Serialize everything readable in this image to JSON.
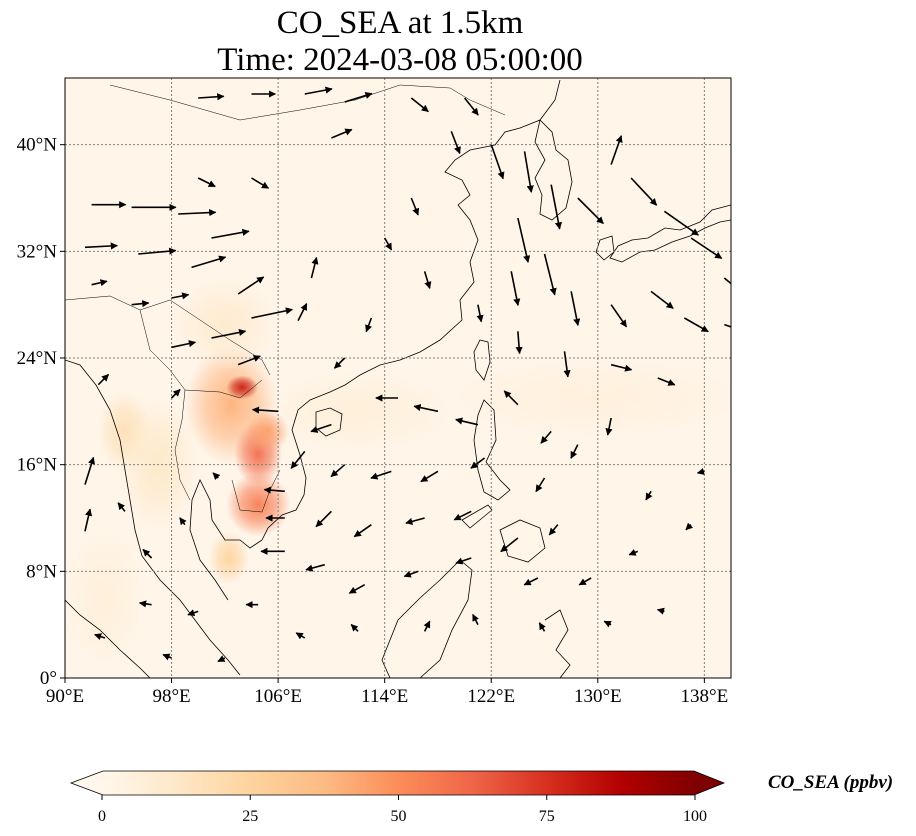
{
  "title": {
    "line1": "CO_SEA at 1.5km",
    "line2": "Time: 2024-03-08 05:00:00"
  },
  "map": {
    "extent": {
      "lon": [
        90,
        140
      ],
      "lat": [
        0,
        45
      ]
    },
    "lon_ticks": [
      {
        "value": 90,
        "label": "90°E"
      },
      {
        "value": 98,
        "label": "98°E"
      },
      {
        "value": 106,
        "label": "106°E"
      },
      {
        "value": 114,
        "label": "114°E"
      },
      {
        "value": 122,
        "label": "122°E"
      },
      {
        "value": 130,
        "label": "130°E"
      },
      {
        "value": 138,
        "label": "138°E"
      }
    ],
    "lat_ticks": [
      {
        "value": 0,
        "label": "0°"
      },
      {
        "value": 8,
        "label": "8°N"
      },
      {
        "value": 16,
        "label": "16°N"
      },
      {
        "value": 24,
        "label": "24°N"
      },
      {
        "value": 32,
        "label": "32°N"
      },
      {
        "value": 40,
        "label": "40°N"
      }
    ],
    "gridlines": true,
    "background_color": "#fff5e9",
    "concentration_plumes": [
      {
        "lon": 102.5,
        "lat": 20.5,
        "rlon": 3.5,
        "rlat": 4.5,
        "value": 40
      },
      {
        "lon": 103.3,
        "lat": 21.8,
        "rlon": 1.2,
        "rlat": 0.9,
        "value": 80
      },
      {
        "lon": 104.5,
        "lat": 16.8,
        "rlon": 1.8,
        "rlat": 2.4,
        "value": 60
      },
      {
        "lon": 104.5,
        "lat": 13.0,
        "rlon": 2.4,
        "rlat": 2.4,
        "value": 55
      },
      {
        "lon": 105.2,
        "lat": 18.5,
        "rlon": 1.6,
        "rlat": 1.6,
        "value": 45
      },
      {
        "lon": 102.3,
        "lat": 9.0,
        "rlon": 1.5,
        "rlat": 2.0,
        "value": 25
      },
      {
        "lon": 94.5,
        "lat": 18.5,
        "rlon": 2.0,
        "rlat": 3.0,
        "value": 18
      },
      {
        "lon": 97.0,
        "lat": 16.0,
        "rlon": 3.0,
        "rlat": 5.0,
        "value": 12
      },
      {
        "lon": 102.0,
        "lat": 26.5,
        "rlon": 4.0,
        "rlat": 3.5,
        "value": 10
      },
      {
        "lon": 112.0,
        "lat": 20.0,
        "rlon": 7.0,
        "rlat": 3.0,
        "value": 7
      },
      {
        "lon": 130.0,
        "lat": 21.0,
        "rlon": 11.0,
        "rlat": 3.0,
        "value": 6
      },
      {
        "lon": 93.0,
        "lat": 6.0,
        "rlon": 3.0,
        "rlat": 5.0,
        "value": 7
      }
    ],
    "wind_vectors": [
      {
        "lon": 92,
        "lat": 35.5,
        "u": 2.0,
        "v": 0.0
      },
      {
        "lon": 95,
        "lat": 35.3,
        "u": 2.6,
        "v": 0.0
      },
      {
        "lon": 98.5,
        "lat": 34.8,
        "u": 2.2,
        "v": 0.1
      },
      {
        "lon": 91.5,
        "lat": 32.3,
        "u": 1.9,
        "v": 0.1
      },
      {
        "lon": 95.5,
        "lat": 31.8,
        "u": 2.2,
        "v": 0.2
      },
      {
        "lon": 99.5,
        "lat": 30.8,
        "u": 2.0,
        "v": 0.6
      },
      {
        "lon": 101,
        "lat": 33.0,
        "u": 2.2,
        "v": 0.4
      },
      {
        "lon": 103,
        "lat": 28.8,
        "u": 1.5,
        "v": 1.0
      },
      {
        "lon": 104,
        "lat": 27.0,
        "u": 2.4,
        "v": 0.5
      },
      {
        "lon": 101,
        "lat": 25.5,
        "u": 2.0,
        "v": 0.4
      },
      {
        "lon": 98,
        "lat": 24.8,
        "u": 1.4,
        "v": 0.3
      },
      {
        "lon": 103,
        "lat": 23.5,
        "u": 1.3,
        "v": 0.5
      },
      {
        "lon": 107.5,
        "lat": 26.8,
        "u": 0.5,
        "v": 1.0
      },
      {
        "lon": 108.5,
        "lat": 30.0,
        "u": 0.3,
        "v": 1.2
      },
      {
        "lon": 100,
        "lat": 43.5,
        "u": 1.5,
        "v": 0.1
      },
      {
        "lon": 104,
        "lat": 43.8,
        "u": 1.4,
        "v": 0.0
      },
      {
        "lon": 108,
        "lat": 43.8,
        "u": 1.6,
        "v": 0.3
      },
      {
        "lon": 111,
        "lat": 43.2,
        "u": 1.6,
        "v": 0.5
      },
      {
        "lon": 110,
        "lat": 40.5,
        "u": 1.2,
        "v": 0.5
      },
      {
        "lon": 104,
        "lat": 37.5,
        "u": 1.0,
        "v": -0.6
      },
      {
        "lon": 100,
        "lat": 37.5,
        "u": 1.0,
        "v": -0.5
      },
      {
        "lon": 116,
        "lat": 43.5,
        "u": 1.0,
        "v": -0.8
      },
      {
        "lon": 120,
        "lat": 43.5,
        "u": 0.8,
        "v": -1.0
      },
      {
        "lon": 119,
        "lat": 41.0,
        "u": 0.5,
        "v": -1.3
      },
      {
        "lon": 122,
        "lat": 40.0,
        "u": 0.7,
        "v": -2.0
      },
      {
        "lon": 124.5,
        "lat": 39.5,
        "u": 0.4,
        "v": -2.4
      },
      {
        "lon": 126.5,
        "lat": 37.0,
        "u": 0.5,
        "v": -2.6
      },
      {
        "lon": 128.5,
        "lat": 36.0,
        "u": 1.5,
        "v": -1.5
      },
      {
        "lon": 131,
        "lat": 38.5,
        "u": 0.6,
        "v": 1.7
      },
      {
        "lon": 132.5,
        "lat": 37.5,
        "u": 1.5,
        "v": -1.6
      },
      {
        "lon": 135,
        "lat": 35.0,
        "u": 2.0,
        "v": -1.4
      },
      {
        "lon": 137,
        "lat": 33.0,
        "u": 1.8,
        "v": -1.2
      },
      {
        "lon": 139.5,
        "lat": 30.0,
        "u": 1.2,
        "v": -1.0
      },
      {
        "lon": 124,
        "lat": 34.5,
        "u": 0.6,
        "v": -2.6
      },
      {
        "lon": 126,
        "lat": 31.8,
        "u": 0.6,
        "v": -2.4
      },
      {
        "lon": 123.5,
        "lat": 30.5,
        "u": 0.4,
        "v": -2.0
      },
      {
        "lon": 128,
        "lat": 29.0,
        "u": 0.4,
        "v": -2.0
      },
      {
        "lon": 131,
        "lat": 28.0,
        "u": 0.9,
        "v": -1.3
      },
      {
        "lon": 134,
        "lat": 29.0,
        "u": 1.3,
        "v": -1.0
      },
      {
        "lon": 136.5,
        "lat": 27.0,
        "u": 1.4,
        "v": -0.8
      },
      {
        "lon": 139.5,
        "lat": 26.5,
        "u": 1.8,
        "v": -0.6
      },
      {
        "lon": 116,
        "lat": 36.0,
        "u": 0.4,
        "v": -1.0
      },
      {
        "lon": 114,
        "lat": 33.0,
        "u": 0.4,
        "v": -0.7
      },
      {
        "lon": 117,
        "lat": 30.5,
        "u": 0.3,
        "v": -1.0
      },
      {
        "lon": 121,
        "lat": 28.0,
        "u": 0.2,
        "v": -1.0
      },
      {
        "lon": 124,
        "lat": 26.0,
        "u": 0.1,
        "v": -1.3
      },
      {
        "lon": 127.5,
        "lat": 24.5,
        "u": 0.2,
        "v": -1.5
      },
      {
        "lon": 131,
        "lat": 23.5,
        "u": 1.2,
        "v": -0.3
      },
      {
        "lon": 134.5,
        "lat": 22.5,
        "u": 1.0,
        "v": -0.4
      },
      {
        "lon": 113,
        "lat": 27.0,
        "u": -0.3,
        "v": -0.8
      },
      {
        "lon": 111,
        "lat": 24.0,
        "u": -0.6,
        "v": -0.6
      },
      {
        "lon": 115,
        "lat": 21.0,
        "u": -1.3,
        "v": 0.0
      },
      {
        "lon": 118,
        "lat": 20.0,
        "u": -1.4,
        "v": 0.3
      },
      {
        "lon": 121,
        "lat": 19.0,
        "u": -1.3,
        "v": 0.3
      },
      {
        "lon": 124,
        "lat": 20.5,
        "u": -0.8,
        "v": 0.8
      },
      {
        "lon": 126.5,
        "lat": 18.5,
        "u": -0.6,
        "v": -0.7
      },
      {
        "lon": 128.5,
        "lat": 17.5,
        "u": -0.4,
        "v": -0.8
      },
      {
        "lon": 131,
        "lat": 19.5,
        "u": -0.2,
        "v": -1.0
      },
      {
        "lon": 110,
        "lat": 19.0,
        "u": -1.2,
        "v": -0.4
      },
      {
        "lon": 108,
        "lat": 17.0,
        "u": -0.8,
        "v": -1.0
      },
      {
        "lon": 111,
        "lat": 16.0,
        "u": -0.8,
        "v": -0.7
      },
      {
        "lon": 114.5,
        "lat": 15.5,
        "u": -1.2,
        "v": -0.4
      },
      {
        "lon": 118,
        "lat": 15.5,
        "u": -1.0,
        "v": -0.6
      },
      {
        "lon": 121.5,
        "lat": 16.5,
        "u": -0.8,
        "v": -0.6
      },
      {
        "lon": 126,
        "lat": 15.0,
        "u": -0.5,
        "v": -0.8
      },
      {
        "lon": 110,
        "lat": 12.5,
        "u": -0.9,
        "v": -0.9
      },
      {
        "lon": 113,
        "lat": 11.5,
        "u": -1.0,
        "v": -0.7
      },
      {
        "lon": 117,
        "lat": 12.0,
        "u": -1.1,
        "v": -0.3
      },
      {
        "lon": 120.5,
        "lat": 12.5,
        "u": -1.0,
        "v": -0.5
      },
      {
        "lon": 124,
        "lat": 10.5,
        "u": -1.0,
        "v": -0.8
      },
      {
        "lon": 127,
        "lat": 11.5,
        "u": -0.5,
        "v": -0.6
      },
      {
        "lon": 106.5,
        "lat": 9.5,
        "u": -1.4,
        "v": 0.0
      },
      {
        "lon": 109.5,
        "lat": 8.5,
        "u": -1.1,
        "v": -0.3
      },
      {
        "lon": 112.5,
        "lat": 7.0,
        "u": -0.9,
        "v": -0.5
      },
      {
        "lon": 116.5,
        "lat": 8.0,
        "u": -0.8,
        "v": -0.3
      },
      {
        "lon": 120.5,
        "lat": 9.0,
        "u": -0.9,
        "v": -0.3
      },
      {
        "lon": 125.5,
        "lat": 7.5,
        "u": -0.8,
        "v": -0.4
      },
      {
        "lon": 129.5,
        "lat": 7.5,
        "u": -0.7,
        "v": -0.4
      },
      {
        "lon": 104.5,
        "lat": 5.5,
        "u": -0.7,
        "v": 0.0
      },
      {
        "lon": 100,
        "lat": 5.0,
        "u": -0.6,
        "v": -0.2
      },
      {
        "lon": 96.5,
        "lat": 5.5,
        "u": -0.7,
        "v": 0.1
      },
      {
        "lon": 93,
        "lat": 3.0,
        "u": -0.6,
        "v": 0.2
      },
      {
        "lon": 98,
        "lat": 1.5,
        "u": -0.5,
        "v": 0.2
      },
      {
        "lon": 102,
        "lat": 1.5,
        "u": -0.4,
        "v": -0.2
      },
      {
        "lon": 108,
        "lat": 3.0,
        "u": -0.5,
        "v": 0.3
      },
      {
        "lon": 112,
        "lat": 3.5,
        "u": -0.4,
        "v": 0.4
      },
      {
        "lon": 117,
        "lat": 3.5,
        "u": 0.3,
        "v": 0.6
      },
      {
        "lon": 121,
        "lat": 4.0,
        "u": -0.3,
        "v": 0.6
      },
      {
        "lon": 126,
        "lat": 3.5,
        "u": -0.3,
        "v": 0.5
      },
      {
        "lon": 131,
        "lat": 4.0,
        "u": -0.4,
        "v": 0.2
      },
      {
        "lon": 135,
        "lat": 5.0,
        "u": -0.4,
        "v": 0.1
      },
      {
        "lon": 133,
        "lat": 9.5,
        "u": -0.5,
        "v": -0.2
      },
      {
        "lon": 137,
        "lat": 11.5,
        "u": -0.3,
        "v": -0.3
      },
      {
        "lon": 134,
        "lat": 14.0,
        "u": -0.3,
        "v": -0.5
      },
      {
        "lon": 138,
        "lat": 15.5,
        "u": -0.4,
        "v": -0.1
      },
      {
        "lon": 91.5,
        "lat": 14.5,
        "u": 0.5,
        "v": 1.6
      },
      {
        "lon": 91.5,
        "lat": 11.0,
        "u": 0.3,
        "v": 1.3
      },
      {
        "lon": 94.5,
        "lat": 12.5,
        "u": -0.4,
        "v": 0.5
      },
      {
        "lon": 96.5,
        "lat": 9.0,
        "u": -0.5,
        "v": 0.5
      },
      {
        "lon": 99,
        "lat": 11.5,
        "u": -0.3,
        "v": 0.4
      },
      {
        "lon": 101.5,
        "lat": 15.0,
        "u": -0.3,
        "v": 0.3
      },
      {
        "lon": 98,
        "lat": 21.0,
        "u": 0.5,
        "v": 0.5
      },
      {
        "lon": 92.5,
        "lat": 22.0,
        "u": 0.6,
        "v": 0.6
      },
      {
        "lon": 95,
        "lat": 28.0,
        "u": 1.0,
        "v": 0.1
      },
      {
        "lon": 92,
        "lat": 29.5,
        "u": 0.9,
        "v": 0.2
      },
      {
        "lon": 98,
        "lat": 28.5,
        "u": 1.0,
        "v": 0.2
      },
      {
        "lon": 106,
        "lat": 20.0,
        "u": -1.5,
        "v": 0.1
      },
      {
        "lon": 106.5,
        "lat": 14.0,
        "u": -1.2,
        "v": 0.1
      },
      {
        "lon": 106.5,
        "lat": 12.0,
        "u": -1.1,
        "v": 0.0
      }
    ]
  },
  "colorbar": {
    "label": "CO_SEA (ppbv)",
    "vmin": 0,
    "vmax": 100,
    "colormap": "OrRd",
    "colors": [
      "#fff7ec",
      "#fee8c8",
      "#fdd49e",
      "#fdbb84",
      "#fc8d59",
      "#ef6548",
      "#d7301f",
      "#b30000",
      "#7f0000"
    ],
    "ticks": [
      {
        "value": 0,
        "label": "0"
      },
      {
        "value": 25,
        "label": "25"
      },
      {
        "value": 50,
        "label": "50"
      },
      {
        "value": 75,
        "label": "75"
      },
      {
        "value": 100,
        "label": "100"
      }
    ],
    "extend": "both"
  }
}
